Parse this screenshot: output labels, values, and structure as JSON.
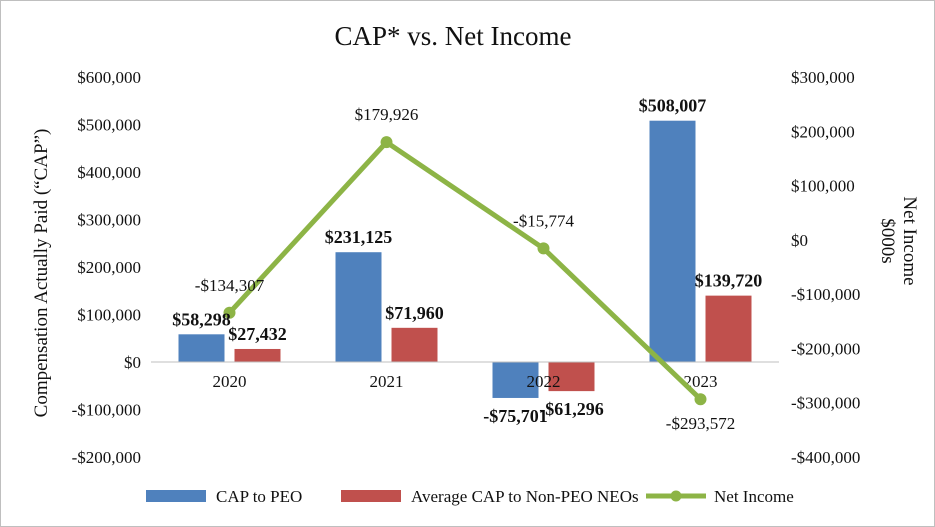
{
  "chart_data": {
    "type": "bar",
    "title": "CAP* vs. Net Income",
    "ylabel": "Compensation Actually Paid (“CAP”)",
    "y2label_line1": "Net Income",
    "y2label_line2": "$000s",
    "categories": [
      "2020",
      "2021",
      "2022",
      "2023"
    ],
    "ylim": [
      -200000,
      600000
    ],
    "y_ticks": [
      600000,
      500000,
      400000,
      300000,
      200000,
      100000,
      0,
      -100000,
      -200000
    ],
    "y_tick_labels": [
      "$600,000",
      "$500,000",
      "$400,000",
      "$300,000",
      "$200,000",
      "$100,000",
      "$0",
      "-$100,000",
      "-$200,000"
    ],
    "y2lim": [
      -400000,
      300000
    ],
    "y2_ticks": [
      300000,
      200000,
      100000,
      0,
      -100000,
      -200000,
      -300000,
      -400000
    ],
    "y2_tick_labels": [
      "$300,000",
      "$200,000",
      "$100,000",
      "$0",
      "-$100,000",
      "-$200,000",
      "-$300,000",
      "-$400,000"
    ],
    "series": [
      {
        "name": "CAP to PEO",
        "kind": "bar",
        "axis": "left",
        "color": "#4f81bd",
        "values": [
          58298,
          231125,
          -75701,
          508007
        ],
        "labels": [
          "$58,298",
          "$231,125",
          "-$75,701",
          "$508,007"
        ]
      },
      {
        "name": "Average CAP to Non-PEO NEOs",
        "kind": "bar",
        "axis": "left",
        "color": "#c0504d",
        "values": [
          27432,
          71960,
          -61296,
          139720
        ],
        "labels": [
          "$27,432",
          "$71,960",
          "-$61,296",
          "$139,720"
        ]
      },
      {
        "name": "Net Income",
        "kind": "line",
        "axis": "right",
        "color": "#8db446",
        "values": [
          -134307,
          179926,
          -15774,
          -293572
        ],
        "labels": [
          "-$134,307",
          "$179,926",
          "-$15,774",
          "-$293,572"
        ]
      }
    ],
    "legend_position": "bottom"
  }
}
